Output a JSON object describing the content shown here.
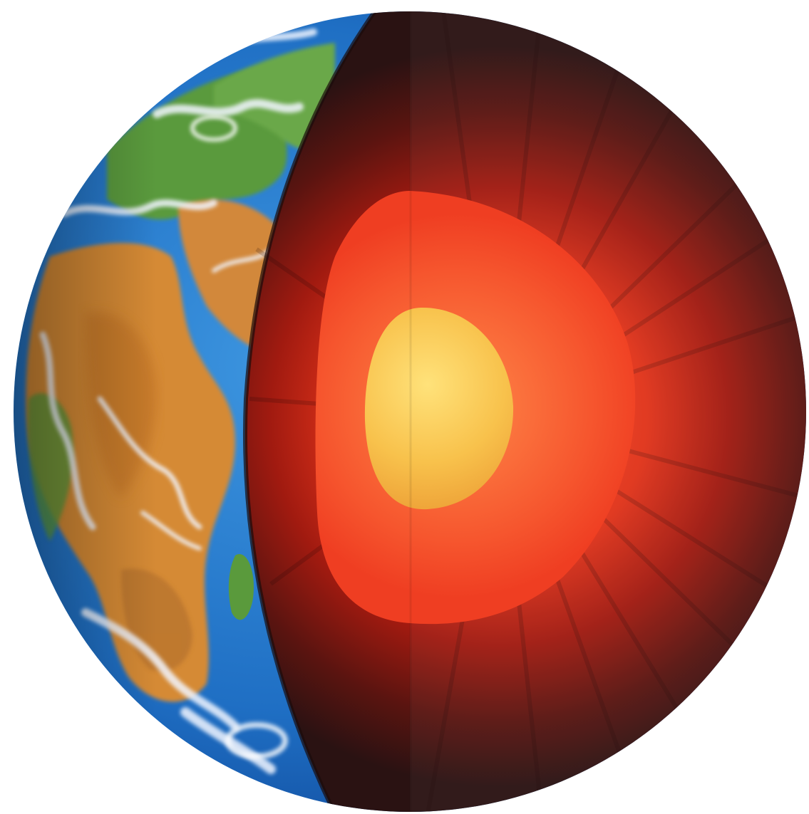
{
  "scene": {
    "subject": "earth-cutaway",
    "background": "#ffffff",
    "colors": {
      "ocean": "#1f6fc4",
      "ocean_deep": "#0c3f8f",
      "land_desert": "#d68a34",
      "land_green": "#4f9a3a",
      "clouds": "#eef4ff",
      "crust_dark": "#2a1212",
      "mantle": "#b01c10",
      "outer_core": "#f04a28",
      "inner_core": "#f7c24a"
    }
  }
}
